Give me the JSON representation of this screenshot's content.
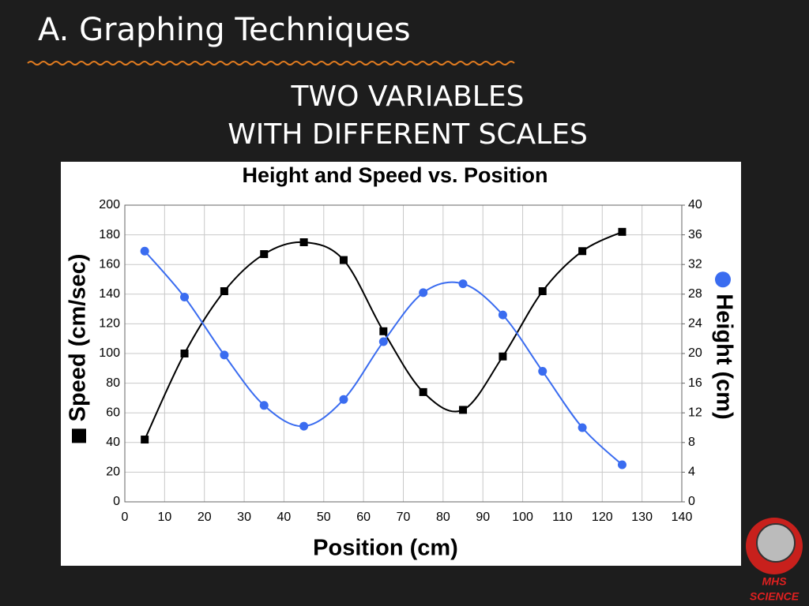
{
  "slide": {
    "title": "A. Graphing Techniques",
    "subtitle": [
      "TWO VARIABLES",
      "WITH DIFFERENT SCALES"
    ],
    "logo": [
      "MHS",
      "SCIENCE"
    ]
  },
  "chart_data": {
    "type": "line",
    "title": "Height and Speed vs. Position",
    "xlabel": "Position (cm)",
    "x": [
      5,
      15,
      25,
      35,
      45,
      55,
      65,
      75,
      85,
      95,
      105,
      115,
      125
    ],
    "series": [
      {
        "name": "Speed (cm/sec)",
        "color": "#000000",
        "marker": "square",
        "values": [
          42,
          100,
          142,
          167,
          175,
          163,
          115,
          74,
          62,
          98,
          142,
          169,
          182
        ]
      },
      {
        "name": "Height (cm)",
        "color": "#3a6cf0",
        "marker": "circle",
        "axis": "y2",
        "values": [
          33.8,
          27.6,
          19.8,
          13,
          10.2,
          13.8,
          21.6,
          28.2,
          29.4,
          25.2,
          17.6,
          10,
          5
        ]
      }
    ],
    "xlim": [
      0,
      140
    ],
    "xticks": [
      0,
      10,
      20,
      30,
      40,
      50,
      60,
      70,
      80,
      90,
      100,
      110,
      120,
      130,
      140
    ],
    "ylim": [
      0,
      200
    ],
    "yticks": [
      0,
      20,
      40,
      60,
      80,
      100,
      120,
      140,
      160,
      180,
      200
    ],
    "y2lim": [
      0,
      40
    ],
    "y2ticks": [
      0,
      4,
      8,
      12,
      16,
      20,
      24,
      28,
      32,
      36,
      40
    ],
    "grid": true
  }
}
